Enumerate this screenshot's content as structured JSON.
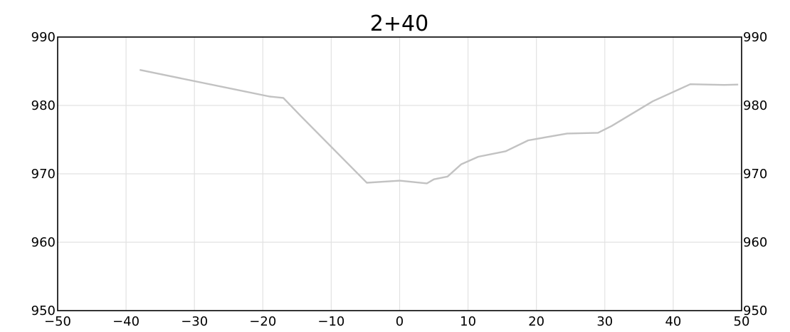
{
  "chart_data": {
    "type": "line",
    "title": "2+40",
    "xlabel": "",
    "ylabel": "",
    "xlim": [
      -50,
      50
    ],
    "ylim": [
      950,
      990
    ],
    "x_ticks": [
      -50,
      -40,
      -30,
      -20,
      -10,
      0,
      10,
      20,
      30,
      40,
      50
    ],
    "x_tick_labels": [
      "−50",
      "−40",
      "−30",
      "−20",
      "−10",
      "0",
      "10",
      "20",
      "30",
      "40",
      "50"
    ],
    "y_ticks": [
      950,
      960,
      970,
      980,
      990
    ],
    "y_tick_labels": [
      "950",
      "960",
      "970",
      "980",
      "990"
    ],
    "grid": true,
    "right_axis_labels": true,
    "series": [
      {
        "color": "#c2c2c2",
        "x": [
          -38,
          -19,
          -17,
          -14.5,
          -4.8,
          0,
          4,
          5,
          7,
          9,
          11.5,
          15.5,
          18.8,
          24.5,
          29,
          31,
          37,
          42.5,
          47.5,
          49.5
        ],
        "y": [
          985.2,
          981.3,
          981.1,
          978.5,
          968.7,
          969,
          968.6,
          969.2,
          969.6,
          971.4,
          972.5,
          973.3,
          974.9,
          975.9,
          976.0,
          977.0,
          980.6,
          983.1,
          983.0,
          983.05
        ]
      }
    ]
  }
}
